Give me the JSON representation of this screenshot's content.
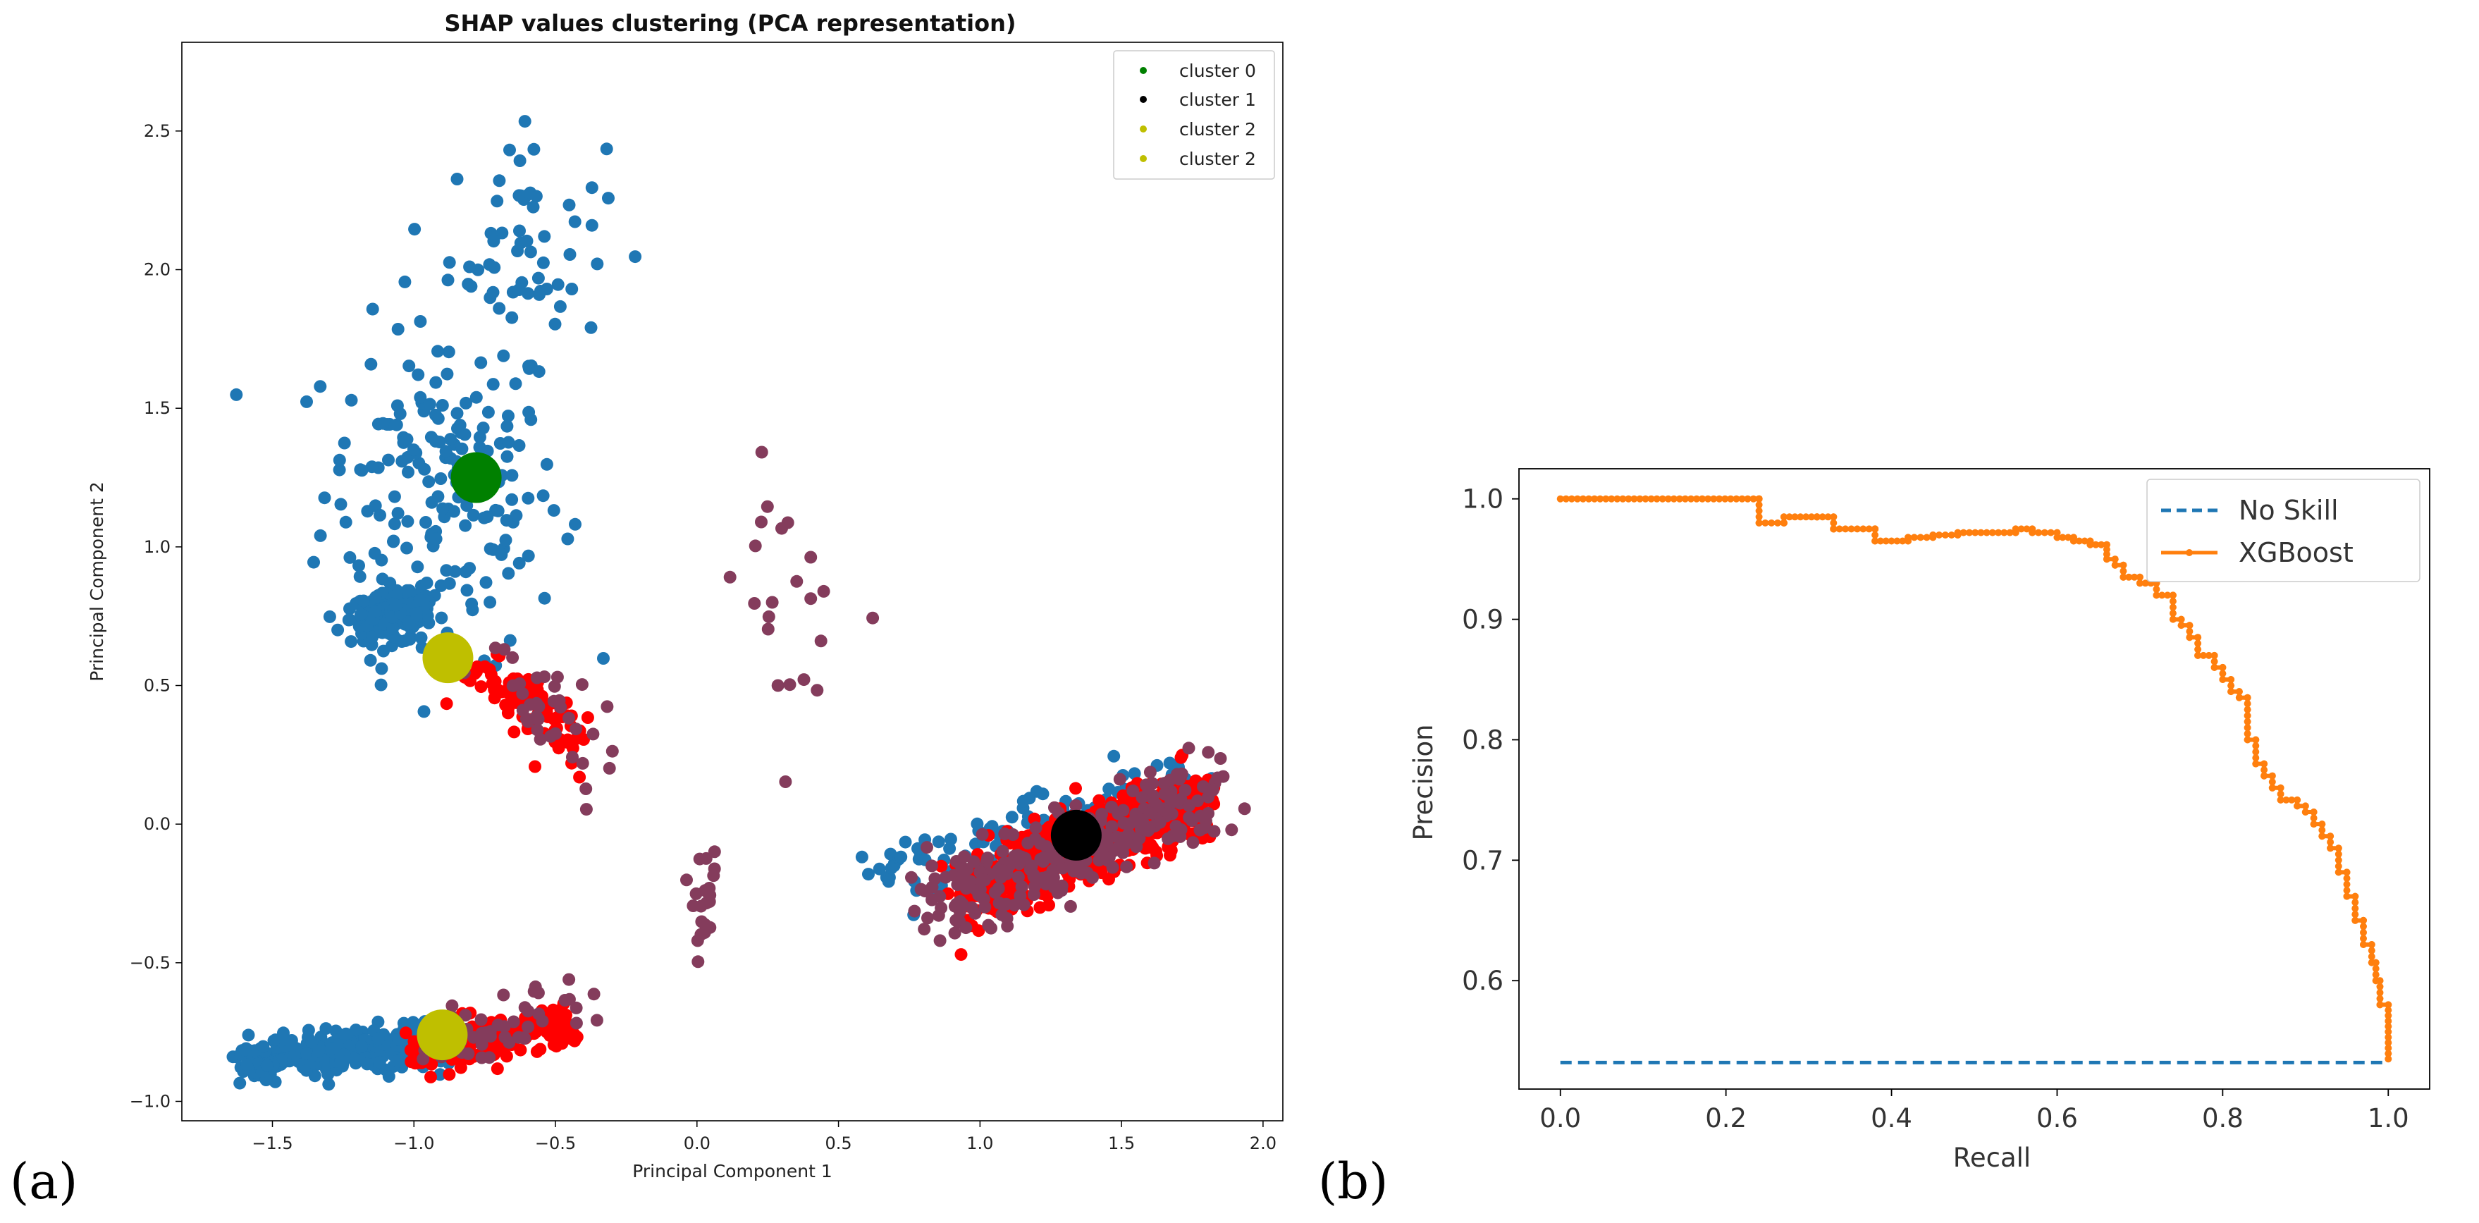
{
  "panel_labels": {
    "a": "(a)",
    "b": "(b)"
  },
  "chart_data": [
    {
      "id": "a",
      "type": "scatter",
      "title": "SHAP values clustering (PCA representation)",
      "xlabel": "Principal Component 1",
      "ylabel": "Principal Component 2",
      "xlim": [
        -1.82,
        2.07
      ],
      "ylim": [
        -1.07,
        2.82
      ],
      "xticks": [
        -1.5,
        -1.0,
        -0.5,
        0.0,
        0.5,
        1.0,
        1.5,
        2.0
      ],
      "xtick_labels": [
        "−1.5",
        "−1.0",
        "−0.5",
        "0.0",
        "0.5",
        "1.0",
        "1.5",
        "2.0"
      ],
      "yticks": [
        -1.0,
        -0.5,
        0.0,
        0.5,
        1.0,
        1.5,
        2.0,
        2.5
      ],
      "ytick_labels": [
        "−1.0",
        "−0.5",
        "0.0",
        "0.5",
        "1.0",
        "1.5",
        "2.0",
        "2.5"
      ],
      "legend_position": "top-right",
      "legend": [
        {
          "label": "cluster 0",
          "color": "#008000"
        },
        {
          "label": "cluster 1",
          "color": "#000000"
        },
        {
          "label": "cluster 2",
          "color": "#bfbf00"
        },
        {
          "label": "cluster 2",
          "color": "#bfbf00"
        }
      ],
      "point_colors": {
        "blue": "#1f77b4",
        "red": "#ff0000",
        "maroon": "#843c5c"
      },
      "centroids": [
        {
          "name": "cluster 0",
          "x": -0.78,
          "y": 1.25,
          "color": "#008000"
        },
        {
          "name": "cluster 1",
          "x": 1.34,
          "y": -0.04,
          "color": "#000000"
        },
        {
          "name": "cluster 2",
          "x": -0.88,
          "y": 0.6,
          "color": "#bfbf00"
        },
        {
          "name": "cluster 2",
          "x": -0.9,
          "y": -0.76,
          "color": "#bfbf00"
        }
      ],
      "groups": [
        {
          "name": "upper-left-blue",
          "n": 200,
          "color": "blue",
          "type": "ellipse",
          "cx": -0.9,
          "cy": 1.2,
          "rx": 0.38,
          "ry": 0.55
        },
        {
          "name": "upper-left-tail",
          "n": 60,
          "color": "blue",
          "type": "ellipse",
          "cx": -0.6,
          "cy": 2.1,
          "rx": 0.25,
          "ry": 0.35
        },
        {
          "name": "mid-left-dense",
          "n": 160,
          "color": "blue",
          "type": "ellipse",
          "cx": -1.08,
          "cy": 0.74,
          "rx": 0.13,
          "ry": 0.08
        },
        {
          "name": "mid-left-red",
          "n": 80,
          "color": "red",
          "type": "line",
          "x0": -0.8,
          "y0": 0.55,
          "x1": -0.4,
          "y1": 0.3,
          "w": 0.06
        },
        {
          "name": "mid-left-maroon",
          "n": 40,
          "color": "maroon",
          "type": "line",
          "x0": -0.78,
          "y0": 0.55,
          "x1": -0.36,
          "y1": 0.28,
          "w": 0.1
        },
        {
          "name": "right-band-blue",
          "n": 140,
          "color": "blue",
          "type": "line",
          "x0": 0.65,
          "y0": -0.2,
          "x1": 1.75,
          "y1": 0.15,
          "w": 0.07
        },
        {
          "name": "right-band-maroon",
          "n": 260,
          "color": "maroon",
          "type": "line",
          "x0": 0.8,
          "y0": -0.32,
          "x1": 1.82,
          "y1": 0.12,
          "w": 0.08
        },
        {
          "name": "right-band-red",
          "n": 600,
          "color": "red",
          "type": "line",
          "x0": 0.95,
          "y0": -0.25,
          "x1": 1.8,
          "y1": 0.1,
          "w": 0.06
        },
        {
          "name": "bottom-band-blue",
          "n": 300,
          "color": "blue",
          "type": "line",
          "x0": -1.62,
          "y0": -0.86,
          "x1": -0.9,
          "y1": -0.78,
          "w": 0.04
        },
        {
          "name": "bottom-band-red",
          "n": 220,
          "color": "red",
          "type": "line",
          "x0": -1.0,
          "y0": -0.82,
          "x1": -0.45,
          "y1": -0.72,
          "w": 0.04
        },
        {
          "name": "bottom-band-maroon",
          "n": 50,
          "color": "maroon",
          "type": "line",
          "x0": -0.95,
          "y0": -0.82,
          "x1": -0.38,
          "y1": -0.65,
          "w": 0.06
        },
        {
          "name": "center-column",
          "n": 22,
          "color": "maroon",
          "type": "ellipse",
          "cx": 0.03,
          "cy": -0.3,
          "rx": 0.04,
          "ry": 0.15
        },
        {
          "name": "center-scatter",
          "n": 22,
          "color": "maroon",
          "type": "ellipse",
          "cx": 0.35,
          "cy": 0.8,
          "rx": 0.2,
          "ry": 0.4
        }
      ]
    },
    {
      "id": "b",
      "type": "line",
      "xlabel": "Recall",
      "ylabel": "Precision",
      "xlim": [
        -0.05,
        1.05
      ],
      "ylim": [
        0.51,
        1.025
      ],
      "xticks": [
        0.0,
        0.2,
        0.4,
        0.6,
        0.8,
        1.0
      ],
      "xtick_labels": [
        "0.0",
        "0.2",
        "0.4",
        "0.6",
        "0.8",
        "1.0"
      ],
      "yticks": [
        0.6,
        0.7,
        0.8,
        0.9,
        1.0
      ],
      "ytick_labels": [
        "0.6",
        "0.7",
        "0.8",
        "0.9",
        "1.0"
      ],
      "legend_position": "top-right",
      "series": [
        {
          "name": "No Skill",
          "style": "dashed",
          "color": "#1f77b4",
          "x": [
            0.0,
            1.0
          ],
          "y": [
            0.532,
            0.532
          ]
        },
        {
          "name": "XGBoost",
          "style": "solid-with-markers",
          "color": "#ff7f0e",
          "x": [
            0.0,
            0.24,
            0.24,
            0.27,
            0.27,
            0.31,
            0.33,
            0.33,
            0.38,
            0.38,
            0.42,
            0.45,
            0.48,
            0.55,
            0.57,
            0.6,
            0.62,
            0.64,
            0.66,
            0.67,
            0.68,
            0.7,
            0.72,
            0.74,
            0.75,
            0.76,
            0.77,
            0.79,
            0.8,
            0.81,
            0.82,
            0.83,
            0.84,
            0.85,
            0.86,
            0.87,
            0.89,
            0.9,
            0.91,
            0.92,
            0.93,
            0.94,
            0.95,
            0.96,
            0.97,
            0.98,
            0.985,
            0.99,
            1.0
          ],
          "y": [
            1.0,
            1.0,
            0.98,
            0.98,
            0.985,
            0.985,
            0.975,
            0.975,
            0.975,
            0.965,
            0.968,
            0.97,
            0.972,
            0.975,
            0.972,
            0.968,
            0.965,
            0.962,
            0.95,
            0.945,
            0.935,
            0.93,
            0.92,
            0.9,
            0.895,
            0.885,
            0.87,
            0.86,
            0.85,
            0.84,
            0.835,
            0.8,
            0.78,
            0.77,
            0.76,
            0.75,
            0.745,
            0.74,
            0.73,
            0.72,
            0.71,
            0.69,
            0.67,
            0.65,
            0.63,
            0.615,
            0.6,
            0.58,
            0.535
          ]
        }
      ]
    }
  ]
}
